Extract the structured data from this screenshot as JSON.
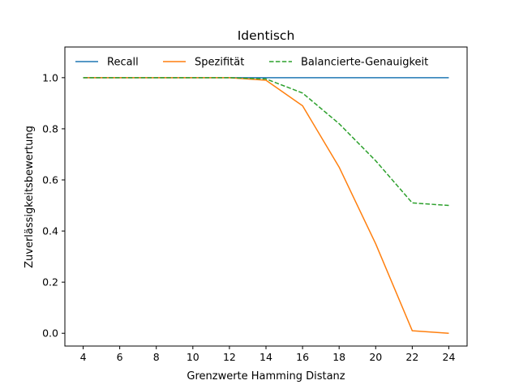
{
  "chart_data": {
    "type": "line",
    "title": "Identisch",
    "xlabel": "Grenzwerte Hamming Distanz",
    "ylabel": "Zuverlässigkeitsbewertung",
    "x": [
      4,
      6,
      8,
      10,
      12,
      14,
      16,
      18,
      20,
      22,
      24
    ],
    "xlim": [
      3,
      25
    ],
    "ylim": [
      -0.05,
      1.12
    ],
    "xticks": [
      "4",
      "6",
      "8",
      "10",
      "12",
      "14",
      "16",
      "18",
      "20",
      "22",
      "24"
    ],
    "yticks": [
      "0.0",
      "0.2",
      "0.4",
      "0.6",
      "0.8",
      "1.0"
    ],
    "grid": false,
    "legend_position": "top",
    "series": [
      {
        "name": "Recall",
        "color": "#1f77b4",
        "style": "solid",
        "values": [
          1.0,
          1.0,
          1.0,
          1.0,
          1.0,
          1.0,
          1.0,
          1.0,
          1.0,
          1.0,
          1.0
        ]
      },
      {
        "name": "Spezifität",
        "color": "#ff7f0e",
        "style": "solid",
        "values": [
          1.0,
          1.0,
          1.0,
          1.0,
          1.0,
          0.99,
          0.89,
          0.65,
          0.35,
          0.01,
          0.0
        ]
      },
      {
        "name": "Balancierte-Genauigkeit",
        "color": "#2ca02c",
        "style": "dashed",
        "values": [
          1.0,
          1.0,
          1.0,
          1.0,
          1.0,
          0.995,
          0.94,
          0.82,
          0.675,
          0.51,
          0.5
        ]
      }
    ]
  }
}
